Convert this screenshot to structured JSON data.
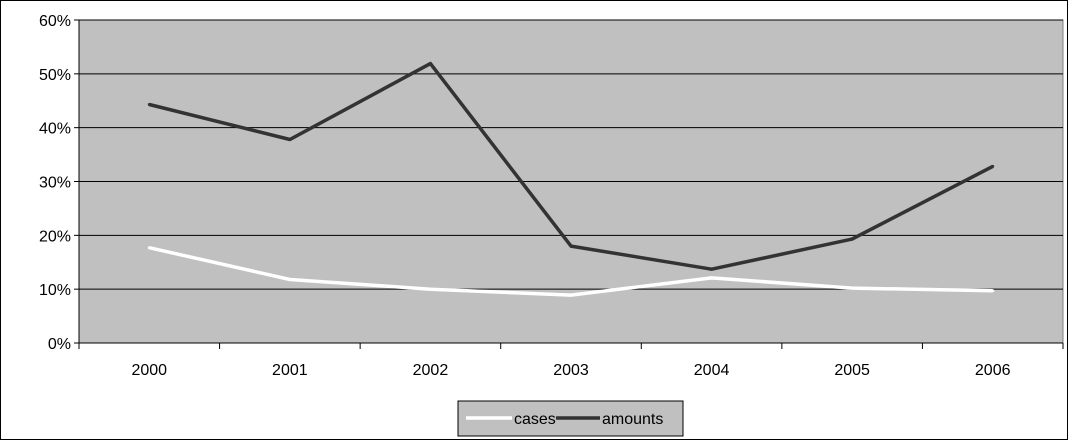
{
  "chart_data": {
    "type": "line",
    "title": "",
    "xlabel": "",
    "ylabel": "",
    "categories": [
      "2000",
      "2001",
      "2002",
      "2003",
      "2004",
      "2005",
      "2006"
    ],
    "ylim": [
      0,
      60
    ],
    "yticks": [
      0,
      10,
      20,
      30,
      40,
      50,
      60
    ],
    "ytick_labels": [
      "0%",
      "10%",
      "20%",
      "30%",
      "40%",
      "50%",
      "60%"
    ],
    "grid": "horizontal",
    "plot_background": "#c0c0c0",
    "legend_position": "bottom",
    "series": [
      {
        "name": "cases",
        "color": "#ffffff",
        "values": [
          17.7,
          11.8,
          10.0,
          8.9,
          12.1,
          10.2,
          9.7
        ]
      },
      {
        "name": "amounts",
        "color": "#333333",
        "values": [
          44.3,
          37.8,
          51.9,
          18.0,
          13.7,
          19.3,
          32.8
        ]
      }
    ]
  }
}
